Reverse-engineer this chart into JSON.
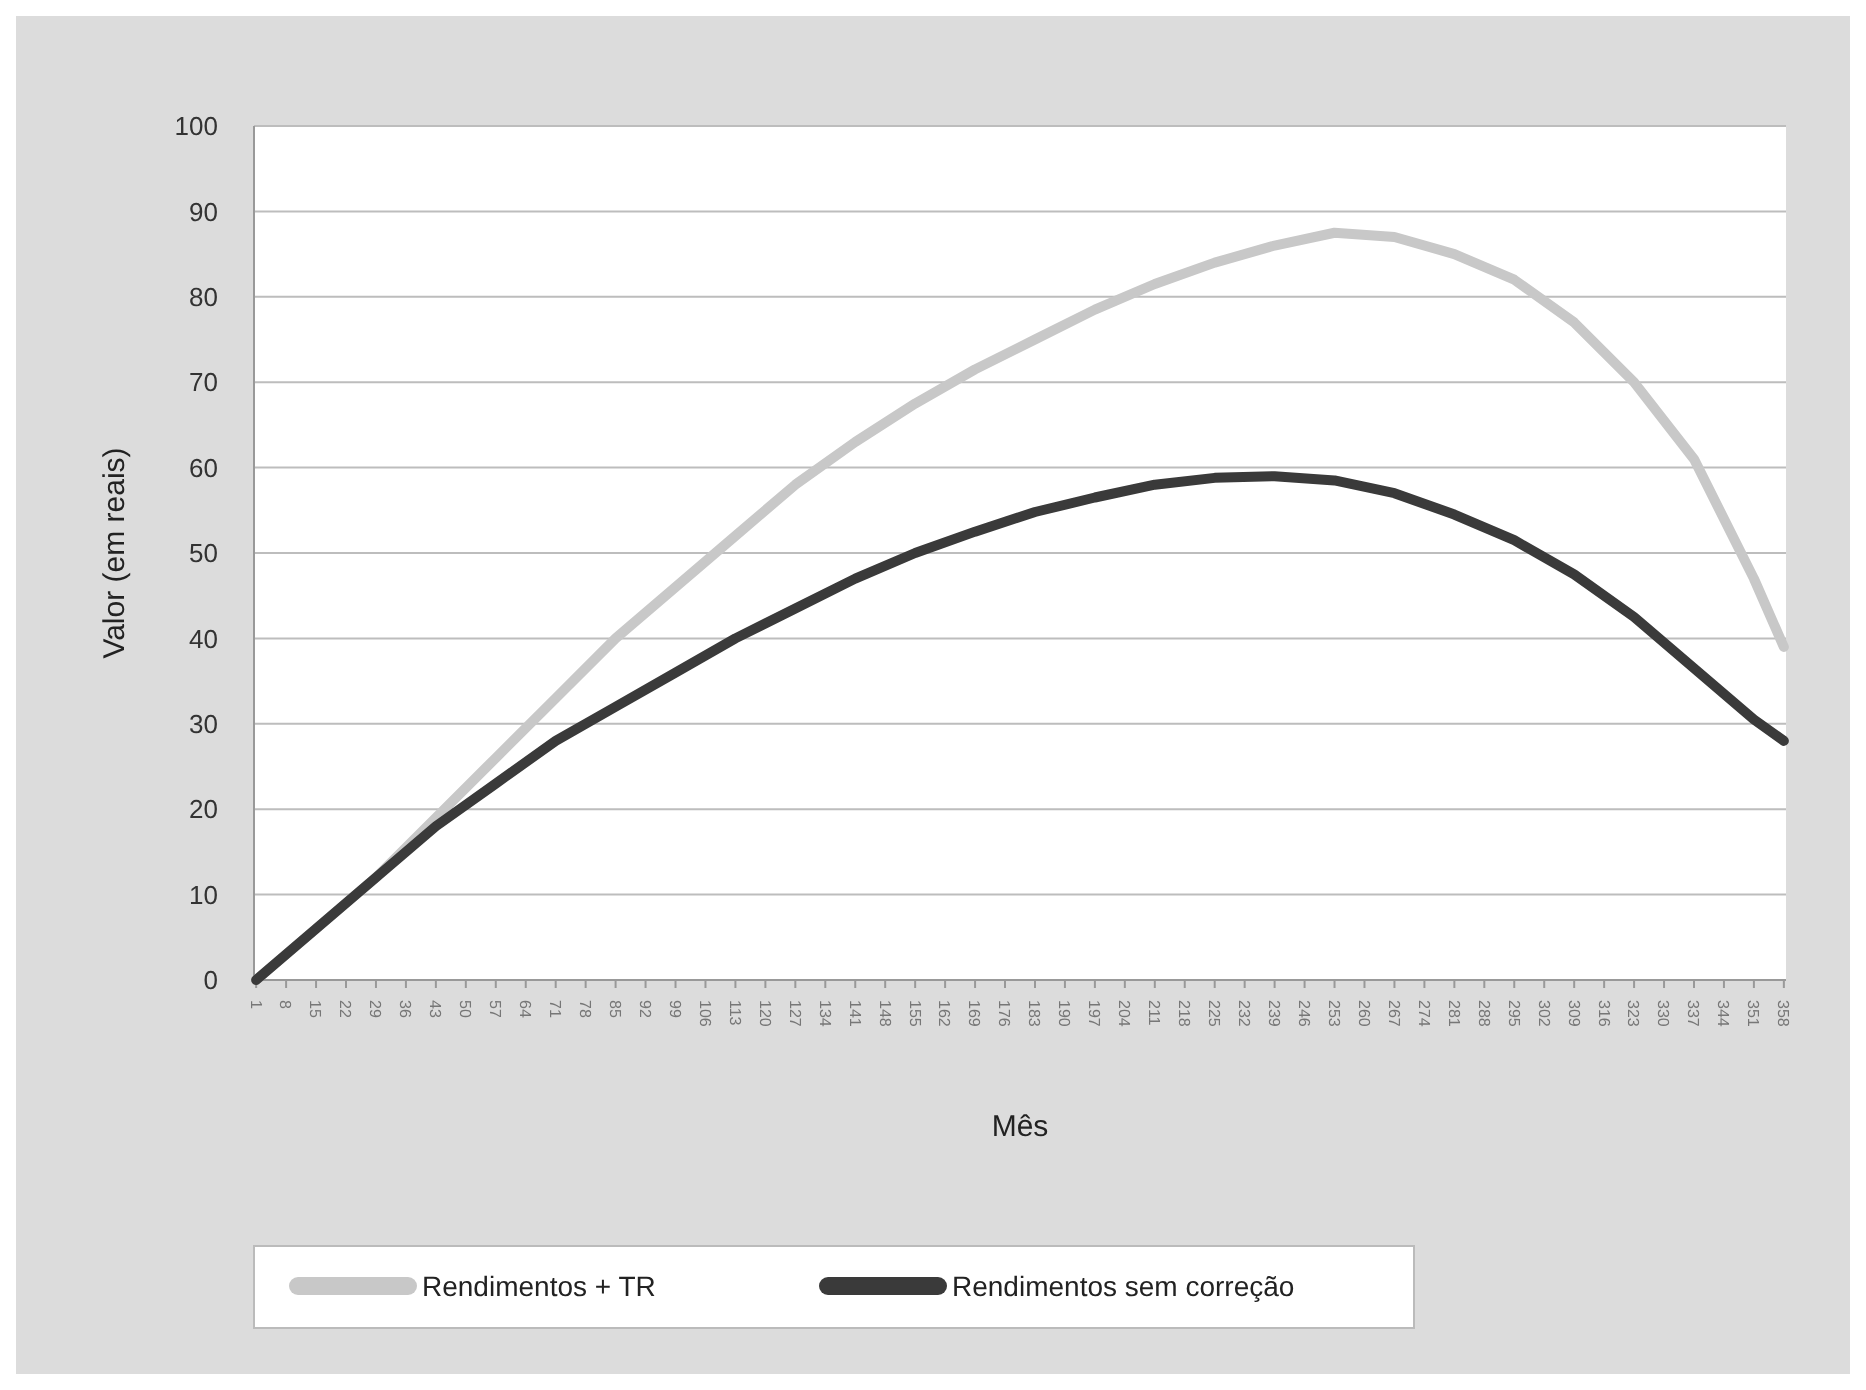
{
  "chart_data": {
    "type": "line",
    "xlabel": "Mês",
    "ylabel": "Valor (em reais)",
    "x": [
      1,
      15,
      29,
      43,
      57,
      71,
      85,
      99,
      113,
      127,
      141,
      155,
      169,
      183,
      197,
      211,
      225,
      239,
      253,
      267,
      281,
      295,
      309,
      323,
      337,
      351,
      358
    ],
    "xlim": [
      0.5,
      358.5
    ],
    "xticks": [
      1,
      8,
      15,
      22,
      29,
      36,
      43,
      50,
      57,
      64,
      71,
      78,
      85,
      92,
      99,
      106,
      113,
      120,
      127,
      134,
      141,
      148,
      155,
      162,
      169,
      176,
      183,
      190,
      197,
      204,
      211,
      218,
      225,
      232,
      239,
      246,
      253,
      260,
      267,
      274,
      281,
      288,
      295,
      302,
      309,
      316,
      323,
      330,
      337,
      344,
      351,
      358
    ],
    "ylim": [
      0,
      100
    ],
    "yticks": [
      0,
      10,
      20,
      30,
      40,
      50,
      60,
      70,
      80,
      90,
      100
    ],
    "grid": "y",
    "legend": "bottom",
    "marker": "none",
    "line_style": "solid",
    "series": [
      {
        "name": "Rendimentos + TR",
        "color": "#c8c8c8",
        "values": [
          0,
          6,
          12,
          19,
          26,
          33,
          40,
          46,
          52,
          58,
          63,
          67.5,
          71.5,
          75,
          78.5,
          81.5,
          84,
          86,
          87.5,
          87,
          85,
          82,
          77,
          70,
          61,
          47,
          39
        ]
      },
      {
        "name": "Rendimentos sem correção",
        "color": "#3a3a3a",
        "values": [
          0,
          6,
          12,
          18,
          23,
          28,
          32,
          36,
          40,
          43.5,
          47,
          50,
          52.5,
          54.8,
          56.5,
          58,
          58.8,
          59,
          58.5,
          57,
          54.5,
          51.5,
          47.5,
          42.5,
          36.5,
          30.5,
          28
        ]
      }
    ]
  }
}
